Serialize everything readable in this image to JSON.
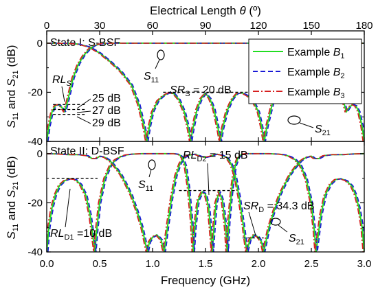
{
  "chart_data": {
    "type": "line",
    "top_axis": {
      "label_prefix": "Electrical Length ",
      "label_symbol": "θ",
      "label_suffix": " (º)",
      "ticks": [
        "0",
        "30",
        "60",
        "90",
        "120",
        "150",
        "180"
      ],
      "range": [
        0,
        180
      ]
    },
    "x_axis": {
      "label": "Frequency (GHz)",
      "ticks": [
        "0.0",
        "0.5",
        "1.0",
        "1.5",
        "2.0",
        "2.5",
        "3.0"
      ],
      "range": [
        0,
        3
      ]
    },
    "y_label": {
      "s": "S",
      "sub1": "11",
      "mid": " and ",
      "sub2": "21",
      "unit": " (dB)"
    },
    "legend": {
      "placement": "top-right",
      "entries": [
        {
          "text": "Example ",
          "sym": "B",
          "sub": "1",
          "color": "#22dd22",
          "dash": "solid"
        },
        {
          "text": "Example ",
          "sym": "B",
          "sub": "2",
          "color": "#1a1ad6",
          "dash": "dashed"
        },
        {
          "text": "Example ",
          "sym": "B",
          "sub": "3",
          "color": "#d62020",
          "dash": "dashdot"
        }
      ]
    },
    "panels": [
      {
        "title": "State I: S-BSF",
        "ylim": [
          -40,
          5
        ],
        "yticks": [
          "0",
          "-20",
          "-40"
        ],
        "s11": [
          [
            0,
            -40
          ],
          [
            0.02,
            -34
          ],
          [
            0.05,
            -28
          ],
          [
            0.08,
            -25.5
          ],
          [
            0.11,
            -25
          ],
          [
            0.14,
            -26
          ],
          [
            0.17,
            -28
          ],
          [
            0.2,
            -23
          ],
          [
            0.25,
            -14
          ],
          [
            0.3,
            -8.5
          ],
          [
            0.35,
            -5
          ],
          [
            0.4,
            -2.5
          ],
          [
            0.45,
            -1
          ],
          [
            0.5,
            -0.4
          ],
          [
            0.55,
            -0.1
          ],
          [
            0.6,
            0
          ],
          [
            1.0,
            0
          ],
          [
            1.5,
            0
          ],
          [
            2.0,
            0
          ],
          [
            2.4,
            0
          ],
          [
            2.45,
            -0.1
          ],
          [
            2.5,
            -0.4
          ],
          [
            2.55,
            -1
          ],
          [
            2.6,
            -2.5
          ],
          [
            2.65,
            -5
          ],
          [
            2.7,
            -8.5
          ],
          [
            2.75,
            -14
          ],
          [
            2.8,
            -23
          ],
          [
            2.83,
            -28
          ],
          [
            2.86,
            -26
          ],
          [
            2.89,
            -25
          ],
          [
            2.92,
            -25.5
          ],
          [
            2.95,
            -28
          ],
          [
            2.98,
            -34
          ],
          [
            3.0,
            -40
          ]
        ],
        "s21": [
          [
            0,
            0
          ],
          [
            0.2,
            -0.1
          ],
          [
            0.3,
            -0.4
          ],
          [
            0.4,
            -1.5
          ],
          [
            0.5,
            -4
          ],
          [
            0.6,
            -7.5
          ],
          [
            0.7,
            -11.5
          ],
          [
            0.8,
            -17
          ],
          [
            0.87,
            -25
          ],
          [
            0.92,
            -34
          ],
          [
            0.945,
            -40
          ],
          [
            0.97,
            -34
          ],
          [
            1.0,
            -28
          ],
          [
            1.05,
            -23.5
          ],
          [
            1.1,
            -21.5
          ],
          [
            1.15,
            -20.3
          ],
          [
            1.2,
            -20.5
          ],
          [
            1.25,
            -23
          ],
          [
            1.3,
            -28
          ],
          [
            1.34,
            -35
          ],
          [
            1.36,
            -40
          ],
          [
            1.38,
            -35
          ],
          [
            1.42,
            -27
          ],
          [
            1.46,
            -22.5
          ],
          [
            1.5,
            -20.5
          ],
          [
            1.54,
            -22.5
          ],
          [
            1.58,
            -27
          ],
          [
            1.62,
            -35
          ],
          [
            1.64,
            -40
          ],
          [
            1.66,
            -35
          ],
          [
            1.7,
            -28
          ],
          [
            1.75,
            -23
          ],
          [
            1.8,
            -20.5
          ],
          [
            1.85,
            -20.3
          ],
          [
            1.9,
            -21.5
          ],
          [
            1.95,
            -23.5
          ],
          [
            2.0,
            -28
          ],
          [
            2.03,
            -34
          ],
          [
            2.055,
            -40
          ],
          [
            2.08,
            -34
          ],
          [
            2.13,
            -25
          ],
          [
            2.2,
            -17
          ],
          [
            2.3,
            -11.5
          ],
          [
            2.4,
            -7.5
          ],
          [
            2.5,
            -4
          ],
          [
            2.6,
            -1.5
          ],
          [
            2.7,
            -0.4
          ],
          [
            2.8,
            -0.1
          ],
          [
            3.0,
            0
          ]
        ],
        "annotations": [
          {
            "kind": "rl",
            "sym": "RL",
            "sub": "S",
            "text": ""
          },
          {
            "kind": "level",
            "text": "25 dB"
          },
          {
            "kind": "level",
            "text": "27 dB"
          },
          {
            "kind": "level",
            "text": "29 dB"
          },
          {
            "kind": "sr",
            "sym": "SR",
            "sub": "S",
            "text": " = 20 dB"
          },
          {
            "kind": "s11",
            "sym": "S",
            "sub": "11"
          },
          {
            "kind": "s21",
            "sym": "S",
            "sub": "21"
          }
        ]
      },
      {
        "title": "State II: D-BSF",
        "ylim": [
          -40,
          5
        ],
        "yticks": [
          "0",
          "-20",
          "-40"
        ],
        "s11": [
          [
            0,
            -40
          ],
          [
            0.02,
            -30
          ],
          [
            0.05,
            -22
          ],
          [
            0.08,
            -17
          ],
          [
            0.12,
            -13
          ],
          [
            0.17,
            -11
          ],
          [
            0.22,
            -10.2
          ],
          [
            0.27,
            -10.5
          ],
          [
            0.32,
            -12.5
          ],
          [
            0.37,
            -17
          ],
          [
            0.41,
            -25
          ],
          [
            0.44,
            -35
          ],
          [
            0.455,
            -40
          ],
          [
            0.47,
            -32
          ],
          [
            0.5,
            -20
          ],
          [
            0.55,
            -10
          ],
          [
            0.6,
            -5
          ],
          [
            0.65,
            -2.5
          ],
          [
            0.7,
            -1.2
          ],
          [
            0.75,
            -0.5
          ],
          [
            0.8,
            -0.2
          ],
          [
            0.9,
            0
          ],
          [
            1.2,
            0
          ],
          [
            1.25,
            -0.3
          ],
          [
            1.28,
            -1.5
          ],
          [
            1.31,
            -5
          ],
          [
            1.34,
            -14
          ],
          [
            1.37,
            -28
          ],
          [
            1.385,
            -40
          ],
          [
            1.4,
            -30
          ],
          [
            1.43,
            -19
          ],
          [
            1.47,
            -15.5
          ],
          [
            1.5,
            -16.5
          ],
          [
            1.53,
            -22
          ],
          [
            1.55,
            -32
          ],
          [
            1.565,
            -40
          ],
          [
            1.58,
            -30
          ],
          [
            1.6,
            -20
          ],
          [
            1.63,
            -15.5
          ],
          [
            1.66,
            -19
          ],
          [
            1.69,
            -30
          ],
          [
            1.705,
            -40
          ],
          [
            1.72,
            -28
          ],
          [
            1.75,
            -14
          ],
          [
            1.78,
            -5
          ],
          [
            1.81,
            -1.5
          ],
          [
            1.84,
            -0.3
          ],
          [
            1.88,
            0
          ],
          [
            2.1,
            0
          ],
          [
            2.2,
            -0.2
          ],
          [
            2.25,
            -0.5
          ],
          [
            2.3,
            -1.2
          ],
          [
            2.35,
            -2.5
          ],
          [
            2.4,
            -5
          ],
          [
            2.45,
            -10
          ],
          [
            2.5,
            -20
          ],
          [
            2.53,
            -32
          ],
          [
            2.545,
            -40
          ],
          [
            2.56,
            -35
          ],
          [
            2.59,
            -25
          ],
          [
            2.63,
            -17
          ],
          [
            2.68,
            -12.5
          ],
          [
            2.73,
            -10.5
          ],
          [
            2.78,
            -10.2
          ],
          [
            2.83,
            -11
          ],
          [
            2.88,
            -13
          ],
          [
            2.92,
            -17
          ],
          [
            2.95,
            -22
          ],
          [
            2.98,
            -30
          ],
          [
            3.0,
            -40
          ]
        ],
        "s21": [
          [
            0,
            0
          ],
          [
            0.1,
            -0.1
          ],
          [
            0.2,
            -0.4
          ],
          [
            0.3,
            -0.4
          ],
          [
            0.38,
            -0.8
          ],
          [
            0.43,
            -2
          ],
          [
            0.47,
            -2
          ],
          [
            0.5,
            -1
          ],
          [
            0.55,
            -1.5
          ],
          [
            0.6,
            -3
          ],
          [
            0.65,
            -5.5
          ],
          [
            0.7,
            -8.5
          ],
          [
            0.75,
            -12.5
          ],
          [
            0.8,
            -17
          ],
          [
            0.85,
            -23
          ],
          [
            0.9,
            -30
          ],
          [
            0.93,
            -36
          ],
          [
            0.95,
            -40
          ],
          [
            0.97,
            -36
          ],
          [
            1.0,
            -34
          ],
          [
            1.04,
            -33
          ],
          [
            1.08,
            -35
          ],
          [
            1.11,
            -40
          ],
          [
            1.14,
            -30
          ],
          [
            1.18,
            -18
          ],
          [
            1.22,
            -9
          ],
          [
            1.26,
            -4
          ],
          [
            1.3,
            -1.5
          ],
          [
            1.35,
            -0.5
          ],
          [
            1.4,
            -0.2
          ],
          [
            1.45,
            -1
          ],
          [
            1.5,
            -1.5
          ],
          [
            1.55,
            -1
          ],
          [
            1.6,
            -0.2
          ],
          [
            1.65,
            -0.5
          ],
          [
            1.7,
            -1.5
          ],
          [
            1.74,
            -4
          ],
          [
            1.78,
            -9
          ],
          [
            1.82,
            -18
          ],
          [
            1.86,
            -30
          ],
          [
            1.89,
            -40
          ],
          [
            1.92,
            -35
          ],
          [
            1.96,
            -33
          ],
          [
            2.0,
            -34
          ],
          [
            2.03,
            -36
          ],
          [
            2.05,
            -40
          ],
          [
            2.07,
            -36
          ],
          [
            2.1,
            -30
          ],
          [
            2.15,
            -23
          ],
          [
            2.2,
            -17
          ],
          [
            2.25,
            -12.5
          ],
          [
            2.3,
            -8.5
          ],
          [
            2.35,
            -5.5
          ],
          [
            2.4,
            -3
          ],
          [
            2.45,
            -1.5
          ],
          [
            2.5,
            -1
          ],
          [
            2.53,
            -2
          ],
          [
            2.57,
            -2
          ],
          [
            2.62,
            -0.8
          ],
          [
            2.7,
            -0.4
          ],
          [
            2.8,
            -0.4
          ],
          [
            2.9,
            -0.1
          ],
          [
            3.0,
            0
          ]
        ],
        "annotations": [
          {
            "kind": "rl",
            "sym": "RL",
            "sub": "D1",
            "text": " =10 dB"
          },
          {
            "kind": "rl2",
            "sym": "RL",
            "sub": "D2",
            "text": " = 15 dB"
          },
          {
            "kind": "sr",
            "sym": "SR",
            "sub": "D",
            "text": " = 34.3 dB"
          },
          {
            "kind": "s11",
            "sym": "S",
            "sub": "11"
          },
          {
            "kind": "s21",
            "sym": "S",
            "sub": "21"
          }
        ]
      }
    ]
  }
}
